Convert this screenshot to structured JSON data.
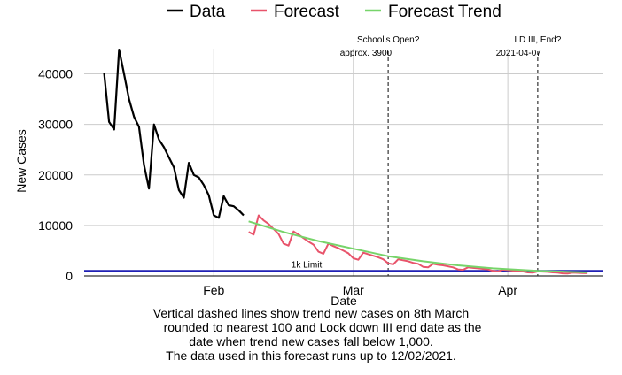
{
  "chart_data": {
    "type": "line",
    "xlabel": "Date",
    "ylabel": "New Cases",
    "ylim": [
      0,
      45000
    ],
    "xlim": [
      "2021-01-06",
      "2021-04-20"
    ],
    "x_ticks": [
      {
        "date": "2021-02-01",
        "label": "Feb"
      },
      {
        "date": "2021-03-01",
        "label": "Mar"
      },
      {
        "date": "2021-04-01",
        "label": "Apr"
      }
    ],
    "y_ticks": [
      0,
      10000,
      20000,
      30000,
      40000
    ],
    "grid": true,
    "legend_position": "top",
    "series": [
      {
        "name": "Data",
        "color": "#000000",
        "points": [
          [
            "2021-01-10",
            40200
          ],
          [
            "2021-01-11",
            30500
          ],
          [
            "2021-01-12",
            29000
          ],
          [
            "2021-01-13",
            44800
          ],
          [
            "2021-01-14",
            40000
          ],
          [
            "2021-01-15",
            35000
          ],
          [
            "2021-01-16",
            31500
          ],
          [
            "2021-01-17",
            29500
          ],
          [
            "2021-01-18",
            22000
          ],
          [
            "2021-01-19",
            17300
          ],
          [
            "2021-01-20",
            30000
          ],
          [
            "2021-01-21",
            27000
          ],
          [
            "2021-01-22",
            25500
          ],
          [
            "2021-01-23",
            23500
          ],
          [
            "2021-01-24",
            21500
          ],
          [
            "2021-01-25",
            17000
          ],
          [
            "2021-01-26",
            15500
          ],
          [
            "2021-01-27",
            22400
          ],
          [
            "2021-01-28",
            20000
          ],
          [
            "2021-01-29",
            19500
          ],
          [
            "2021-01-30",
            18000
          ],
          [
            "2021-01-31",
            16000
          ],
          [
            "2021-02-01",
            12000
          ],
          [
            "2021-02-02",
            11500
          ],
          [
            "2021-02-03",
            15800
          ],
          [
            "2021-02-04",
            14000
          ],
          [
            "2021-02-05",
            13800
          ],
          [
            "2021-02-06",
            13000
          ],
          [
            "2021-02-07",
            12000
          ]
        ]
      },
      {
        "name": "Forecast",
        "color": "#e8546b",
        "points": [
          [
            "2021-02-08",
            8700
          ],
          [
            "2021-02-09",
            8200
          ],
          [
            "2021-02-10",
            12000
          ],
          [
            "2021-02-11",
            11000
          ],
          [
            "2021-02-12",
            10300
          ],
          [
            "2021-02-13",
            9300
          ],
          [
            "2021-02-14",
            8300
          ],
          [
            "2021-02-15",
            6400
          ],
          [
            "2021-02-16",
            6000
          ],
          [
            "2021-02-17",
            8800
          ],
          [
            "2021-02-18",
            8200
          ],
          [
            "2021-02-19",
            7500
          ],
          [
            "2021-02-20",
            6800
          ],
          [
            "2021-02-21",
            6200
          ],
          [
            "2021-02-22",
            4800
          ],
          [
            "2021-02-23",
            4400
          ],
          [
            "2021-02-24",
            6400
          ],
          [
            "2021-02-25",
            5900
          ],
          [
            "2021-02-26",
            5500
          ],
          [
            "2021-02-27",
            5000
          ],
          [
            "2021-02-28",
            4500
          ],
          [
            "2021-03-01",
            3500
          ],
          [
            "2021-03-02",
            3200
          ],
          [
            "2021-03-03",
            4600
          ],
          [
            "2021-03-04",
            4300
          ],
          [
            "2021-03-05",
            4000
          ],
          [
            "2021-03-06",
            3700
          ],
          [
            "2021-03-07",
            3300
          ],
          [
            "2021-03-08",
            2500
          ],
          [
            "2021-03-09",
            2300
          ],
          [
            "2021-03-10",
            3300
          ],
          [
            "2021-03-11",
            3100
          ],
          [
            "2021-03-12",
            2900
          ],
          [
            "2021-03-13",
            2600
          ],
          [
            "2021-03-14",
            2400
          ],
          [
            "2021-03-15",
            1800
          ],
          [
            "2021-03-16",
            1700
          ],
          [
            "2021-03-17",
            2400
          ],
          [
            "2021-03-18",
            2200
          ],
          [
            "2021-03-19",
            2100
          ],
          [
            "2021-03-20",
            1900
          ],
          [
            "2021-03-21",
            1700
          ],
          [
            "2021-03-22",
            1300
          ],
          [
            "2021-03-23",
            1200
          ],
          [
            "2021-03-24",
            1700
          ],
          [
            "2021-03-25",
            1600
          ],
          [
            "2021-03-26",
            1500
          ],
          [
            "2021-03-27",
            1400
          ],
          [
            "2021-03-28",
            1300
          ],
          [
            "2021-03-29",
            1000
          ],
          [
            "2021-03-30",
            900
          ],
          [
            "2021-03-31",
            1250
          ],
          [
            "2021-04-01",
            1150
          ],
          [
            "2021-04-02",
            1050
          ],
          [
            "2021-04-03",
            1000
          ],
          [
            "2021-04-04",
            900
          ],
          [
            "2021-04-05",
            700
          ],
          [
            "2021-04-06",
            650
          ],
          [
            "2021-04-07",
            900
          ],
          [
            "2021-04-08",
            850
          ],
          [
            "2021-04-09",
            800
          ],
          [
            "2021-04-10",
            700
          ],
          [
            "2021-04-11",
            650
          ],
          [
            "2021-04-12",
            500
          ],
          [
            "2021-04-13",
            480
          ],
          [
            "2021-04-14",
            650
          ],
          [
            "2021-04-15",
            620
          ],
          [
            "2021-04-16",
            580
          ],
          [
            "2021-04-17",
            540
          ]
        ]
      },
      {
        "name": "Forecast Trend",
        "color": "#77d46a",
        "points": [
          [
            "2021-02-08",
            10800
          ],
          [
            "2021-02-15",
            8700
          ],
          [
            "2021-02-22",
            6900
          ],
          [
            "2021-03-01",
            5400
          ],
          [
            "2021-03-08",
            3900
          ],
          [
            "2021-03-15",
            2900
          ],
          [
            "2021-03-22",
            2100
          ],
          [
            "2021-03-29",
            1500
          ],
          [
            "2021-04-07",
            1000
          ],
          [
            "2021-04-17",
            700
          ]
        ]
      }
    ],
    "hlines": [
      {
        "y": 1000,
        "color": "#1f1fb4",
        "label": "1k Limit"
      }
    ],
    "vlines": [
      {
        "date": "2021-03-08",
        "label_line1": "School's Open?",
        "label_line2": "approx. 3900"
      },
      {
        "date": "2021-04-07",
        "label_line1": "LD III, End?",
        "label_line2": "2021-04-07"
      }
    ],
    "caption_lines": [
      "Vertical dashed lines show trend new cases on 8th March",
      "rounded to nearest 100 and Lock down III end date as the",
      "date when trend new cases fall below 1,000.",
      "The data used in this forecast runs up to 12/02/2021."
    ]
  }
}
